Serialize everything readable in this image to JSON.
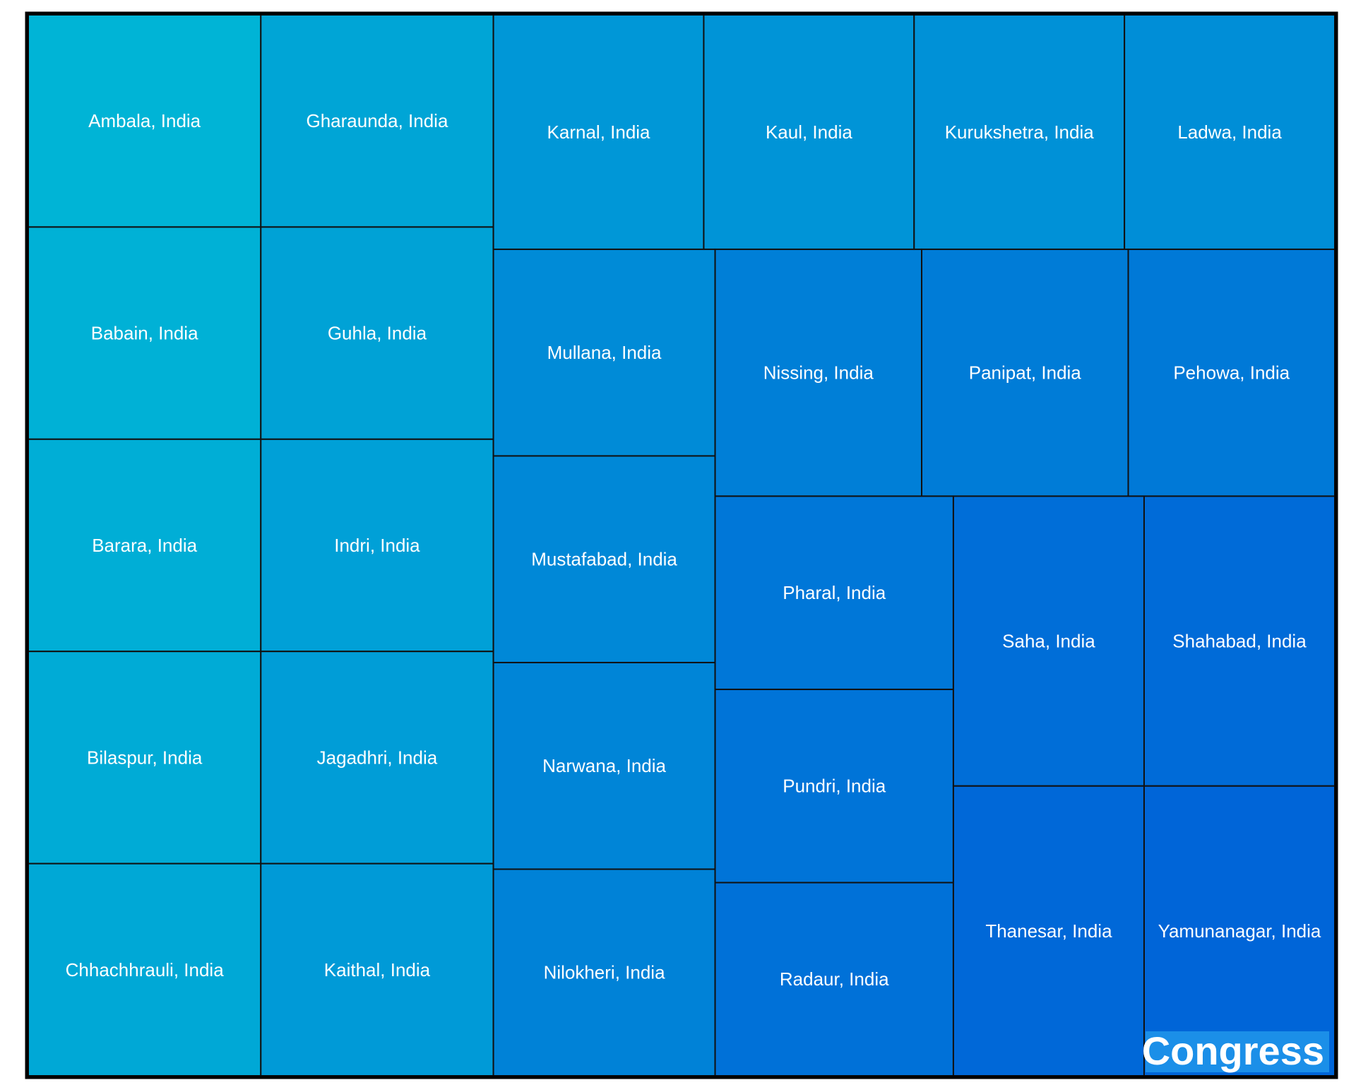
{
  "chart_data": {
    "type": "treemap",
    "group": {
      "label": "Congress",
      "label_bg": "#1b8fe8"
    },
    "colors": {
      "start": "#00b4d6",
      "end": "#0065d8",
      "border": "#111111",
      "frame": "#000000",
      "text": "#ffffff"
    },
    "items": [
      {
        "label": "Ambala, India",
        "value": 1
      },
      {
        "label": "Babain, India",
        "value": 1
      },
      {
        "label": "Barara, India",
        "value": 1
      },
      {
        "label": "Bilaspur, India",
        "value": 1
      },
      {
        "label": "Chhachhrauli, India",
        "value": 1
      },
      {
        "label": "Gharaunda, India",
        "value": 1
      },
      {
        "label": "Guhla, India",
        "value": 1
      },
      {
        "label": "Indri, India",
        "value": 1
      },
      {
        "label": "Jagadhri, India",
        "value": 1
      },
      {
        "label": "Kaithal, India",
        "value": 1
      },
      {
        "label": "Karnal, India",
        "value": 1
      },
      {
        "label": "Kaul, India",
        "value": 1
      },
      {
        "label": "Kurukshetra, India",
        "value": 1
      },
      {
        "label": "Ladwa, India",
        "value": 1
      },
      {
        "label": "Mullana, India",
        "value": 1
      },
      {
        "label": "Mustafabad, India",
        "value": 1
      },
      {
        "label": "Narwana, India",
        "value": 1
      },
      {
        "label": "Nilokheri, India",
        "value": 1
      },
      {
        "label": "Nissing, India",
        "value": 1
      },
      {
        "label": "Panipat, India",
        "value": 1
      },
      {
        "label": "Pehowa, India",
        "value": 1
      },
      {
        "label": "Pharal, India",
        "value": 1
      },
      {
        "label": "Pundri, India",
        "value": 1
      },
      {
        "label": "Radaur, India",
        "value": 1
      },
      {
        "label": "Saha, India",
        "value": 1
      },
      {
        "label": "Shahabad, India",
        "value": 1
      },
      {
        "label": "Thanesar, India",
        "value": 1
      },
      {
        "label": "Yamunanagar, India",
        "value": 1
      }
    ]
  }
}
